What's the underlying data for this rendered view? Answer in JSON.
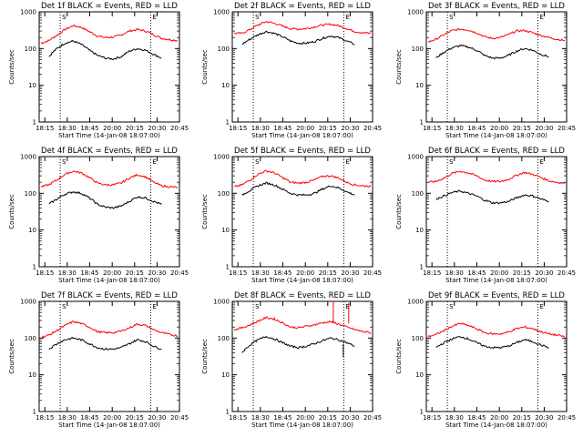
{
  "chart_data": {
    "type": "line",
    "layout": "3x3 grid",
    "y_scale": "log",
    "ylim": [
      1,
      1000
    ],
    "y_ticks": [
      "1",
      "10",
      "100",
      "1000"
    ],
    "ylabel": "Counts/sec",
    "x_ticks": [
      "18:15",
      "18:30",
      "18:45",
      "20:00",
      "20:15",
      "20:30",
      "20:45"
    ],
    "xlabel": "Start Time (14-Jan-08 18:07:00)",
    "markers": [
      "S",
      "E"
    ],
    "colors": {
      "events": "#000000",
      "lld": "#ff0000"
    },
    "panels": [
      {
        "title": "Det 1f BLACK = Events, RED = LLD",
        "lld": [
          140,
          165,
          230,
          330,
          420,
          380,
          290,
          220,
          200,
          205,
          235,
          300,
          330,
          300,
          240,
          190,
          175,
          165
        ],
        "events": [
          null,
          60,
          100,
          140,
          160,
          130,
          90,
          65,
          55,
          52,
          60,
          85,
          100,
          90,
          70,
          55,
          null,
          null
        ]
      },
      {
        "title": "Det 2f BLACK = Events, RED = LLD",
        "lld": [
          260,
          260,
          330,
          440,
          540,
          490,
          410,
          350,
          340,
          350,
          390,
          440,
          460,
          420,
          350,
          290,
          270,
          260
        ],
        "events": [
          null,
          130,
          180,
          240,
          290,
          260,
          210,
          160,
          140,
          140,
          155,
          190,
          220,
          200,
          160,
          130,
          null,
          null
        ]
      },
      {
        "title": "Det 3f BLACK = Events, RED = LLD",
        "lld": [
          150,
          180,
          240,
          310,
          340,
          320,
          270,
          210,
          190,
          200,
          240,
          300,
          310,
          270,
          230,
          200,
          180,
          165
        ],
        "events": [
          null,
          55,
          80,
          105,
          120,
          110,
          90,
          65,
          55,
          55,
          65,
          85,
          100,
          90,
          70,
          60,
          null,
          null
        ]
      },
      {
        "title": "Det 4f BLACK = Events, RED = LLD",
        "lld": [
          150,
          170,
          230,
          330,
          400,
          360,
          270,
          190,
          170,
          170,
          190,
          260,
          320,
          280,
          200,
          160,
          150,
          145
        ],
        "events": [
          null,
          50,
          70,
          95,
          110,
          100,
          75,
          50,
          42,
          40,
          45,
          60,
          80,
          75,
          60,
          50,
          null,
          null
        ]
      },
      {
        "title": "Det 5f BLACK = Events, RED = LLD",
        "lld": [
          150,
          170,
          230,
          330,
          410,
          360,
          270,
          200,
          190,
          200,
          230,
          290,
          300,
          260,
          200,
          170,
          160,
          155
        ],
        "events": [
          null,
          90,
          120,
          160,
          190,
          170,
          130,
          100,
          90,
          90,
          100,
          130,
          160,
          140,
          110,
          90,
          null,
          null
        ]
      },
      {
        "title": "Det 6f BLACK = Events, RED = LLD",
        "lld": [
          200,
          210,
          260,
          350,
          400,
          360,
          300,
          230,
          210,
          210,
          240,
          310,
          370,
          330,
          270,
          220,
          200,
          190
        ],
        "events": [
          null,
          70,
          85,
          105,
          115,
          100,
          85,
          65,
          55,
          55,
          60,
          75,
          90,
          85,
          70,
          60,
          null,
          null
        ]
      },
      {
        "title": "Det 7f BLACK = Events, RED = LLD",
        "lld": [
          105,
          120,
          160,
          220,
          280,
          250,
          200,
          150,
          140,
          140,
          155,
          190,
          240,
          220,
          170,
          140,
          125,
          115
        ],
        "events": [
          null,
          50,
          70,
          90,
          100,
          90,
          70,
          55,
          50,
          50,
          55,
          70,
          90,
          80,
          60,
          50,
          null,
          null
        ]
      },
      {
        "title": "Det 8f BLACK = Events, RED = LLD",
        "lld": [
          170,
          190,
          230,
          290,
          360,
          330,
          260,
          200,
          190,
          210,
          230,
          260,
          280,
          240,
          200,
          170,
          150,
          140
        ],
        "events": [
          null,
          40,
          65,
          90,
          110,
          95,
          75,
          60,
          55,
          60,
          70,
          85,
          100,
          90,
          75,
          60,
          null,
          null
        ]
      },
      {
        "title": "Det 9f BLACK = Events, RED = LLD",
        "lld": [
          110,
          125,
          160,
          210,
          250,
          220,
          180,
          140,
          130,
          130,
          145,
          180,
          200,
          180,
          150,
          130,
          120,
          110
        ],
        "events": [
          null,
          55,
          75,
          95,
          110,
          95,
          75,
          60,
          55,
          55,
          60,
          75,
          90,
          80,
          65,
          55,
          null,
          null
        ]
      }
    ]
  }
}
